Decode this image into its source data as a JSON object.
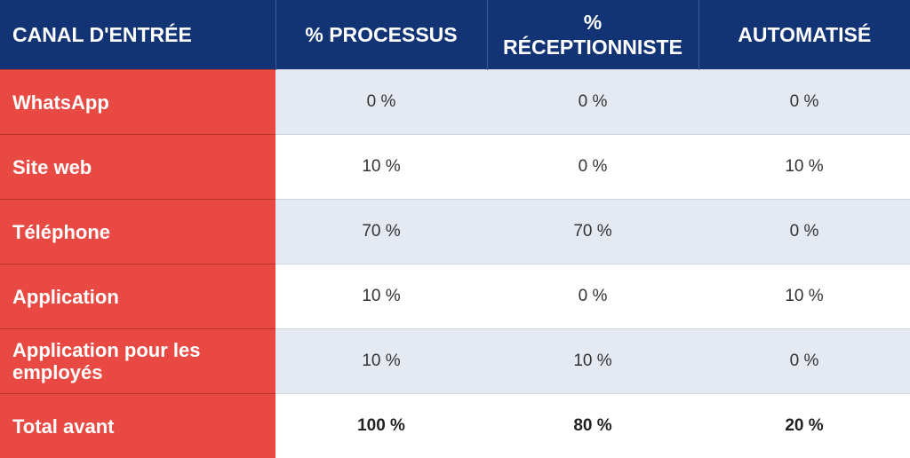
{
  "headers": [
    "CANAL D'ENTRÉE",
    "% PROCESSUS",
    "% RÉCEPTIONNISTE",
    "AUTOMATISÉ"
  ],
  "rows": [
    {
      "label": "WhatsApp",
      "processus": "0 %",
      "receptionniste": "0 %",
      "automatise": "0 %"
    },
    {
      "label": "Site web",
      "processus": "10 %",
      "receptionniste": "0 %",
      "automatise": "10 %"
    },
    {
      "label": "Téléphone",
      "processus": "70 %",
      "receptionniste": "70 %",
      "automatise": "0 %"
    },
    {
      "label": "Application",
      "processus": "10 %",
      "receptionniste": "0 %",
      "automatise": "10 %"
    },
    {
      "label": "Application pour les employés",
      "processus": "10 %",
      "receptionniste": "10 %",
      "automatise": "0 %"
    },
    {
      "label": "Total avant",
      "processus": "100 %",
      "receptionniste": "80 %",
      "automatise": "20 %"
    }
  ],
  "colors": {
    "header_bg": "#123374",
    "label_bg": "#e84a43",
    "row_shade": "#e5e9f1",
    "row_plain": "#ffffff"
  }
}
